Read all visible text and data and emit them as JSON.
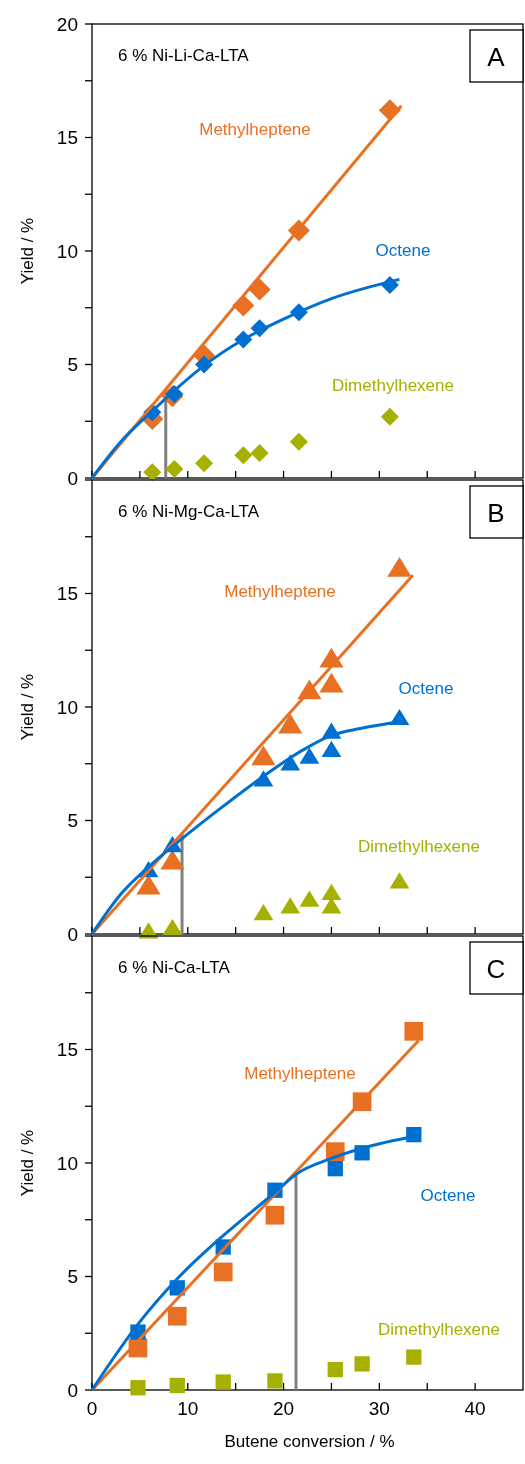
{
  "chart_data": [
    {
      "type": "scatter",
      "title": "6 % Ni-Li-Ca-LTA",
      "ylabel": "Yield / %",
      "annotations": [
        "A"
      ],
      "marker": "diamond",
      "tick_labels": "y",
      "xlim": [
        0,
        45
      ],
      "xticks": [
        0,
        {
          "value": 5,
          "label": null
        },
        10,
        {
          "value": 15,
          "label": null
        },
        20,
        {
          "value": 25,
          "label": null
        },
        30,
        {
          "value": 35,
          "label": null
        },
        40
      ],
      "ylim": [
        0,
        20
      ],
      "yticks": [
        0,
        {
          "value": 2.5,
          "label": null
        },
        5,
        {
          "value": 7.5,
          "label": null
        },
        10,
        {
          "value": 12.5,
          "label": null
        },
        15,
        {
          "value": 17.5,
          "label": null
        },
        20
      ],
      "ref_lines": [
        {
          "axis": "x",
          "value": 7.7,
          "color": "#808080"
        }
      ],
      "series": [
        {
          "name": "Methylheptene",
          "color": "#e87022",
          "x": [
            6.3,
            8.4,
            11.7,
            15.8,
            17.5,
            21.6,
            31.1
          ],
          "values": [
            2.6,
            3.6,
            5.4,
            7.6,
            8.3,
            10.9,
            16.2
          ]
        },
        {
          "name": "Octene",
          "color": "#0070d0",
          "x": [
            6.3,
            8.6,
            11.7,
            15.8,
            17.5,
            21.6,
            31.1
          ],
          "values": [
            2.9,
            3.7,
            5.0,
            6.1,
            6.6,
            7.3,
            8.5
          ]
        },
        {
          "name": "Dimethylhexene",
          "color": "#a5b000",
          "x": [
            6.3,
            8.6,
            11.7,
            15.8,
            17.5,
            21.6,
            31.1
          ],
          "values": [
            0.25,
            0.4,
            0.65,
            1.0,
            1.1,
            1.6,
            2.7
          ]
        },
        {
          "type": "line",
          "marker": "none",
          "color": "#e87022",
          "x": [
            0,
            32.3
          ],
          "values": [
            0,
            16.4
          ]
        },
        {
          "type": "line",
          "marker": "none",
          "color": "#0070d0",
          "x": [
            0,
            3,
            6.3,
            8.6,
            11.7,
            15.8,
            20,
            25,
            32.1
          ],
          "values": [
            0,
            1.6,
            2.95,
            3.85,
            4.95,
            6.1,
            7.0,
            7.9,
            8.75
          ]
        }
      ]
    },
    {
      "type": "scatter",
      "title": "6 % Ni-Mg-Ca-LTA",
      "ylabel": "Yield / %",
      "annotations": [
        "B"
      ],
      "marker": "triangle",
      "tick_labels": "y",
      "xlim": [
        0,
        45
      ],
      "xticks": [
        0,
        {
          "value": 5,
          "label": null
        },
        10,
        {
          "value": 15,
          "label": null
        },
        20,
        {
          "value": 25,
          "label": null
        },
        30,
        {
          "value": 35,
          "label": null
        },
        40
      ],
      "ylim": [
        0,
        20
      ],
      "yticks": [
        0,
        {
          "value": 2.5,
          "label": null
        },
        5,
        {
          "value": 7.5,
          "label": null
        },
        10,
        {
          "value": 12.5,
          "label": null
        },
        15,
        {
          "value": 17.5,
          "label": null
        },
        {
          "value": 20,
          "label": null
        }
      ],
      "ref_lines": [
        {
          "axis": "x",
          "value": 9.4,
          "color": "#808080"
        }
      ],
      "series": [
        {
          "name": "Methylheptene",
          "color": "#e87022",
          "x": [
            5.9,
            8.4,
            17.9,
            20.7,
            22.7,
            25.0,
            25.0,
            32.1
          ],
          "values": [
            2.1,
            3.2,
            7.8,
            9.2,
            10.7,
            12.1,
            11.0,
            16.1
          ]
        },
        {
          "name": "Octene",
          "color": "#0070d0",
          "x": [
            5.9,
            8.4,
            17.9,
            20.7,
            22.7,
            25.0,
            25.0,
            32.1
          ],
          "values": [
            2.8,
            3.9,
            6.8,
            7.5,
            7.8,
            8.1,
            8.9,
            9.5
          ]
        },
        {
          "name": "Dimethylhexene",
          "color": "#a5b000",
          "x": [
            5.9,
            8.4,
            17.9,
            20.7,
            22.7,
            25.0,
            25.0,
            32.1
          ],
          "values": [
            0.1,
            0.25,
            0.9,
            1.2,
            1.5,
            1.2,
            1.8,
            2.3
          ]
        },
        {
          "type": "line",
          "marker": "none",
          "color": "#e87022",
          "x": [
            0,
            33.5
          ],
          "values": [
            0,
            15.8
          ]
        },
        {
          "type": "line",
          "marker": "none",
          "color": "#0070d0",
          "x": [
            0,
            3,
            5.9,
            9.4,
            13,
            17.9,
            22,
            25,
            28,
            32.1
          ],
          "values": [
            0,
            1.75,
            2.95,
            4.2,
            5.4,
            6.95,
            8.1,
            8.75,
            9.05,
            9.35
          ]
        }
      ]
    },
    {
      "type": "scatter",
      "title": "6 % Ni-Ca-LTA",
      "xlabel": "Butene conversion / %",
      "ylabel": "Yield / %",
      "annotations": [
        "C"
      ],
      "marker": "square",
      "xlim": [
        0,
        45
      ],
      "xticks": [
        0,
        {
          "value": 5,
          "label": null
        },
        10,
        {
          "value": 15,
          "label": null
        },
        20,
        {
          "value": 25,
          "label": null
        },
        30,
        {
          "value": 35,
          "label": null
        },
        40
      ],
      "ylim": [
        0,
        20
      ],
      "yticks": [
        0,
        {
          "value": 2.5,
          "label": null
        },
        5,
        {
          "value": 7.5,
          "label": null
        },
        10,
        {
          "value": 12.5,
          "label": null
        },
        15,
        {
          "value": 17.5,
          "label": null
        },
        {
          "value": 20,
          "label": null
        }
      ],
      "ref_lines": [
        {
          "axis": "x",
          "value": 21.3,
          "color": "#808080"
        }
      ],
      "series": [
        {
          "name": "Methylheptene",
          "color": "#e87022",
          "x": [
            4.8,
            8.9,
            13.7,
            19.1,
            25.4,
            28.2,
            33.6
          ],
          "values": [
            1.85,
            3.25,
            5.2,
            7.7,
            10.5,
            12.7,
            15.8
          ]
        },
        {
          "name": "Octene",
          "color": "#0070d0",
          "x": [
            4.8,
            8.9,
            13.7,
            19.1,
            25.4,
            28.2,
            33.6
          ],
          "values": [
            2.55,
            4.5,
            6.3,
            8.8,
            9.75,
            10.45,
            11.25
          ]
        },
        {
          "name": "Dimethylhexene",
          "color": "#a5b000",
          "x": [
            4.8,
            8.9,
            13.7,
            19.1,
            25.4,
            28.2,
            33.6
          ],
          "values": [
            0.1,
            0.2,
            0.35,
            0.4,
            0.9,
            1.15,
            1.45
          ]
        },
        {
          "type": "line",
          "marker": "none",
          "color": "#e87022",
          "x": [
            0,
            34.1
          ],
          "values": [
            0,
            15.4
          ]
        },
        {
          "type": "line",
          "marker": "none",
          "color": "#0070d0",
          "x": [
            0,
            4.8,
            8.9,
            13.7,
            19.1,
            21.3,
            25,
            28.2,
            34
          ],
          "values": [
            0,
            2.9,
            4.9,
            6.8,
            8.7,
            9.5,
            10.2,
            10.65,
            11.2
          ]
        }
      ]
    }
  ]
}
